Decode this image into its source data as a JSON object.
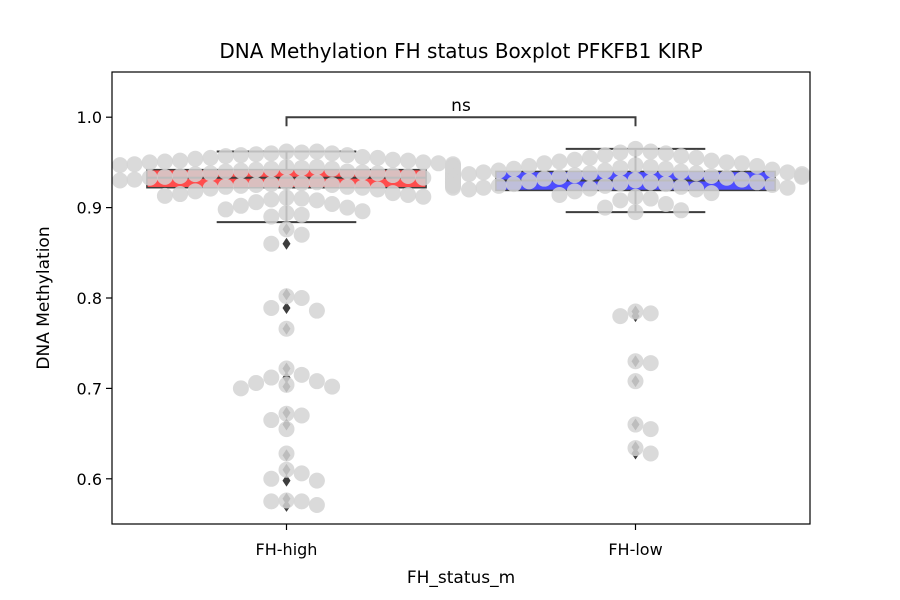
{
  "chart_data": {
    "type": "box",
    "title": "DNA Methylation FH status Boxplot PFKFB1 KIRP",
    "xlabel": "FH_status_m",
    "ylabel": "DNA Methylation",
    "ylim": [
      0.55,
      1.05
    ],
    "yticks": [
      0.6,
      0.7,
      0.8,
      0.9,
      1.0
    ],
    "ytick_labels": [
      "0.6",
      "0.7",
      "0.8",
      "0.9",
      "1.0"
    ],
    "categories": [
      "FH-high",
      "FH-low"
    ],
    "significance": {
      "label": "ns",
      "y": 1.0
    },
    "colors": {
      "FH-high": "#ff4d4d",
      "FH-low": "#4d4dff",
      "points": "#d3d3d3",
      "outlier": "#3d3d3d",
      "line": "#3d3d3d"
    },
    "boxes": [
      {
        "category": "FH-high",
        "whisker_low": 0.884,
        "q1": 0.922,
        "median": 0.933,
        "q3": 0.942,
        "whisker_high": 0.962,
        "outliers": [
          0.876,
          0.86,
          0.804,
          0.789,
          0.766,
          0.722,
          0.712,
          0.702,
          0.673,
          0.66,
          0.626,
          0.61,
          0.598,
          0.578,
          0.57
        ]
      },
      {
        "category": "FH-low",
        "whisker_low": 0.895,
        "q1": 0.919,
        "median": 0.93,
        "q3": 0.94,
        "whisker_high": 0.965,
        "outliers": [
          0.785,
          0.78,
          0.73,
          0.708,
          0.66,
          0.635,
          0.628
        ]
      }
    ],
    "points": [
      {
        "category": "FH-high",
        "values": [
          0.958,
          0.952,
          0.948,
          0.945,
          0.942,
          0.939,
          0.937,
          0.935,
          0.934,
          0.932,
          0.93,
          0.928,
          0.927,
          0.925,
          0.923,
          0.921,
          0.962,
          0.96,
          0.958,
          0.956,
          0.954,
          0.952,
          0.95,
          0.948,
          0.946,
          0.944,
          0.942,
          0.94,
          0.938,
          0.936,
          0.934,
          0.933,
          0.932,
          0.931,
          0.93,
          0.929,
          0.928,
          0.927,
          0.926,
          0.925,
          0.924,
          0.923,
          0.922,
          0.96,
          0.955,
          0.95,
          0.946,
          0.943,
          0.94,
          0.938,
          0.936,
          0.935,
          0.933,
          0.931,
          0.929,
          0.927,
          0.925,
          0.924,
          0.922,
          0.92,
          0.918,
          0.916,
          0.915,
          0.914,
          0.913,
          0.912,
          0.911,
          0.91,
          0.909,
          0.908,
          0.906,
          0.904,
          0.902,
          0.9,
          0.898,
          0.896,
          0.894,
          0.892,
          0.89,
          0.962,
          0.961,
          0.959,
          0.957,
          0.955,
          0.953,
          0.951,
          0.949,
          0.947,
          0.945,
          0.944,
          0.943,
          0.941,
          0.939,
          0.937,
          0.935,
          0.876,
          0.87,
          0.86,
          0.802,
          0.8,
          0.789,
          0.786,
          0.766,
          0.722,
          0.715,
          0.712,
          0.708,
          0.706,
          0.704,
          0.702,
          0.7,
          0.672,
          0.67,
          0.665,
          0.655,
          0.628,
          0.61,
          0.606,
          0.6,
          0.598,
          0.576,
          0.575,
          0.575,
          0.571
        ]
      },
      {
        "category": "FH-low",
        "values": [
          0.944,
          0.941,
          0.939,
          0.937,
          0.935,
          0.933,
          0.932,
          0.93,
          0.929,
          0.928,
          0.927,
          0.926,
          0.925,
          0.924,
          0.923,
          0.922,
          0.921,
          0.92,
          0.965,
          0.962,
          0.96,
          0.957,
          0.955,
          0.953,
          0.951,
          0.949,
          0.947,
          0.945,
          0.943,
          0.941,
          0.939,
          0.938,
          0.936,
          0.934,
          0.95,
          0.946,
          0.942,
          0.938,
          0.934,
          0.931,
          0.928,
          0.926,
          0.924,
          0.922,
          0.92,
          0.918,
          0.916,
          0.914,
          0.912,
          0.91,
          0.908,
          0.904,
          0.9,
          0.897,
          0.895,
          0.961,
          0.958,
          0.955,
          0.952,
          0.949,
          0.946,
          0.943,
          0.94,
          0.937,
          0.935,
          0.785,
          0.783,
          0.78,
          0.73,
          0.728,
          0.708,
          0.66,
          0.655,
          0.634,
          0.628
        ]
      }
    ]
  }
}
